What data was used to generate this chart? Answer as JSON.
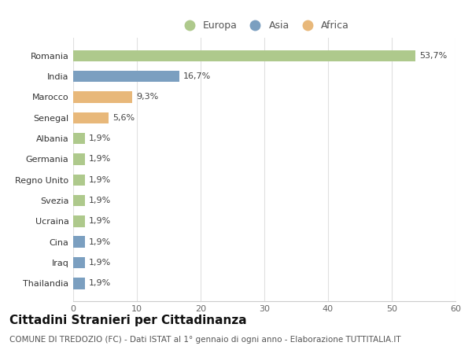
{
  "categories": [
    "Thailandia",
    "Iraq",
    "Cina",
    "Ucraina",
    "Svezia",
    "Regno Unito",
    "Germania",
    "Albania",
    "Senegal",
    "Marocco",
    "India",
    "Romania"
  ],
  "values": [
    1.9,
    1.9,
    1.9,
    1.9,
    1.9,
    1.9,
    1.9,
    1.9,
    5.6,
    9.3,
    16.7,
    53.7
  ],
  "labels": [
    "1,9%",
    "1,9%",
    "1,9%",
    "1,9%",
    "1,9%",
    "1,9%",
    "1,9%",
    "1,9%",
    "5,6%",
    "9,3%",
    "16,7%",
    "53,7%"
  ],
  "continent": [
    "Asia",
    "Asia",
    "Asia",
    "Europa",
    "Europa",
    "Europa",
    "Europa",
    "Europa",
    "Africa",
    "Africa",
    "Asia",
    "Europa"
  ],
  "colors": {
    "Europa": "#aec98c",
    "Asia": "#7b9fc0",
    "Africa": "#e8b87a"
  },
  "legend_labels": [
    "Europa",
    "Asia",
    "Africa"
  ],
  "xlim": [
    0,
    60
  ],
  "xticks": [
    0,
    10,
    20,
    30,
    40,
    50,
    60
  ],
  "title": "Cittadini Stranieri per Cittadinanza",
  "subtitle": "COMUNE DI TREDOZIO (FC) - Dati ISTAT al 1° gennaio di ogni anno - Elaborazione TUTTITALIA.IT",
  "background_color": "#ffffff",
  "bar_height": 0.55,
  "title_fontsize": 11,
  "subtitle_fontsize": 7.5,
  "label_fontsize": 8,
  "tick_fontsize": 8,
  "legend_fontsize": 9
}
